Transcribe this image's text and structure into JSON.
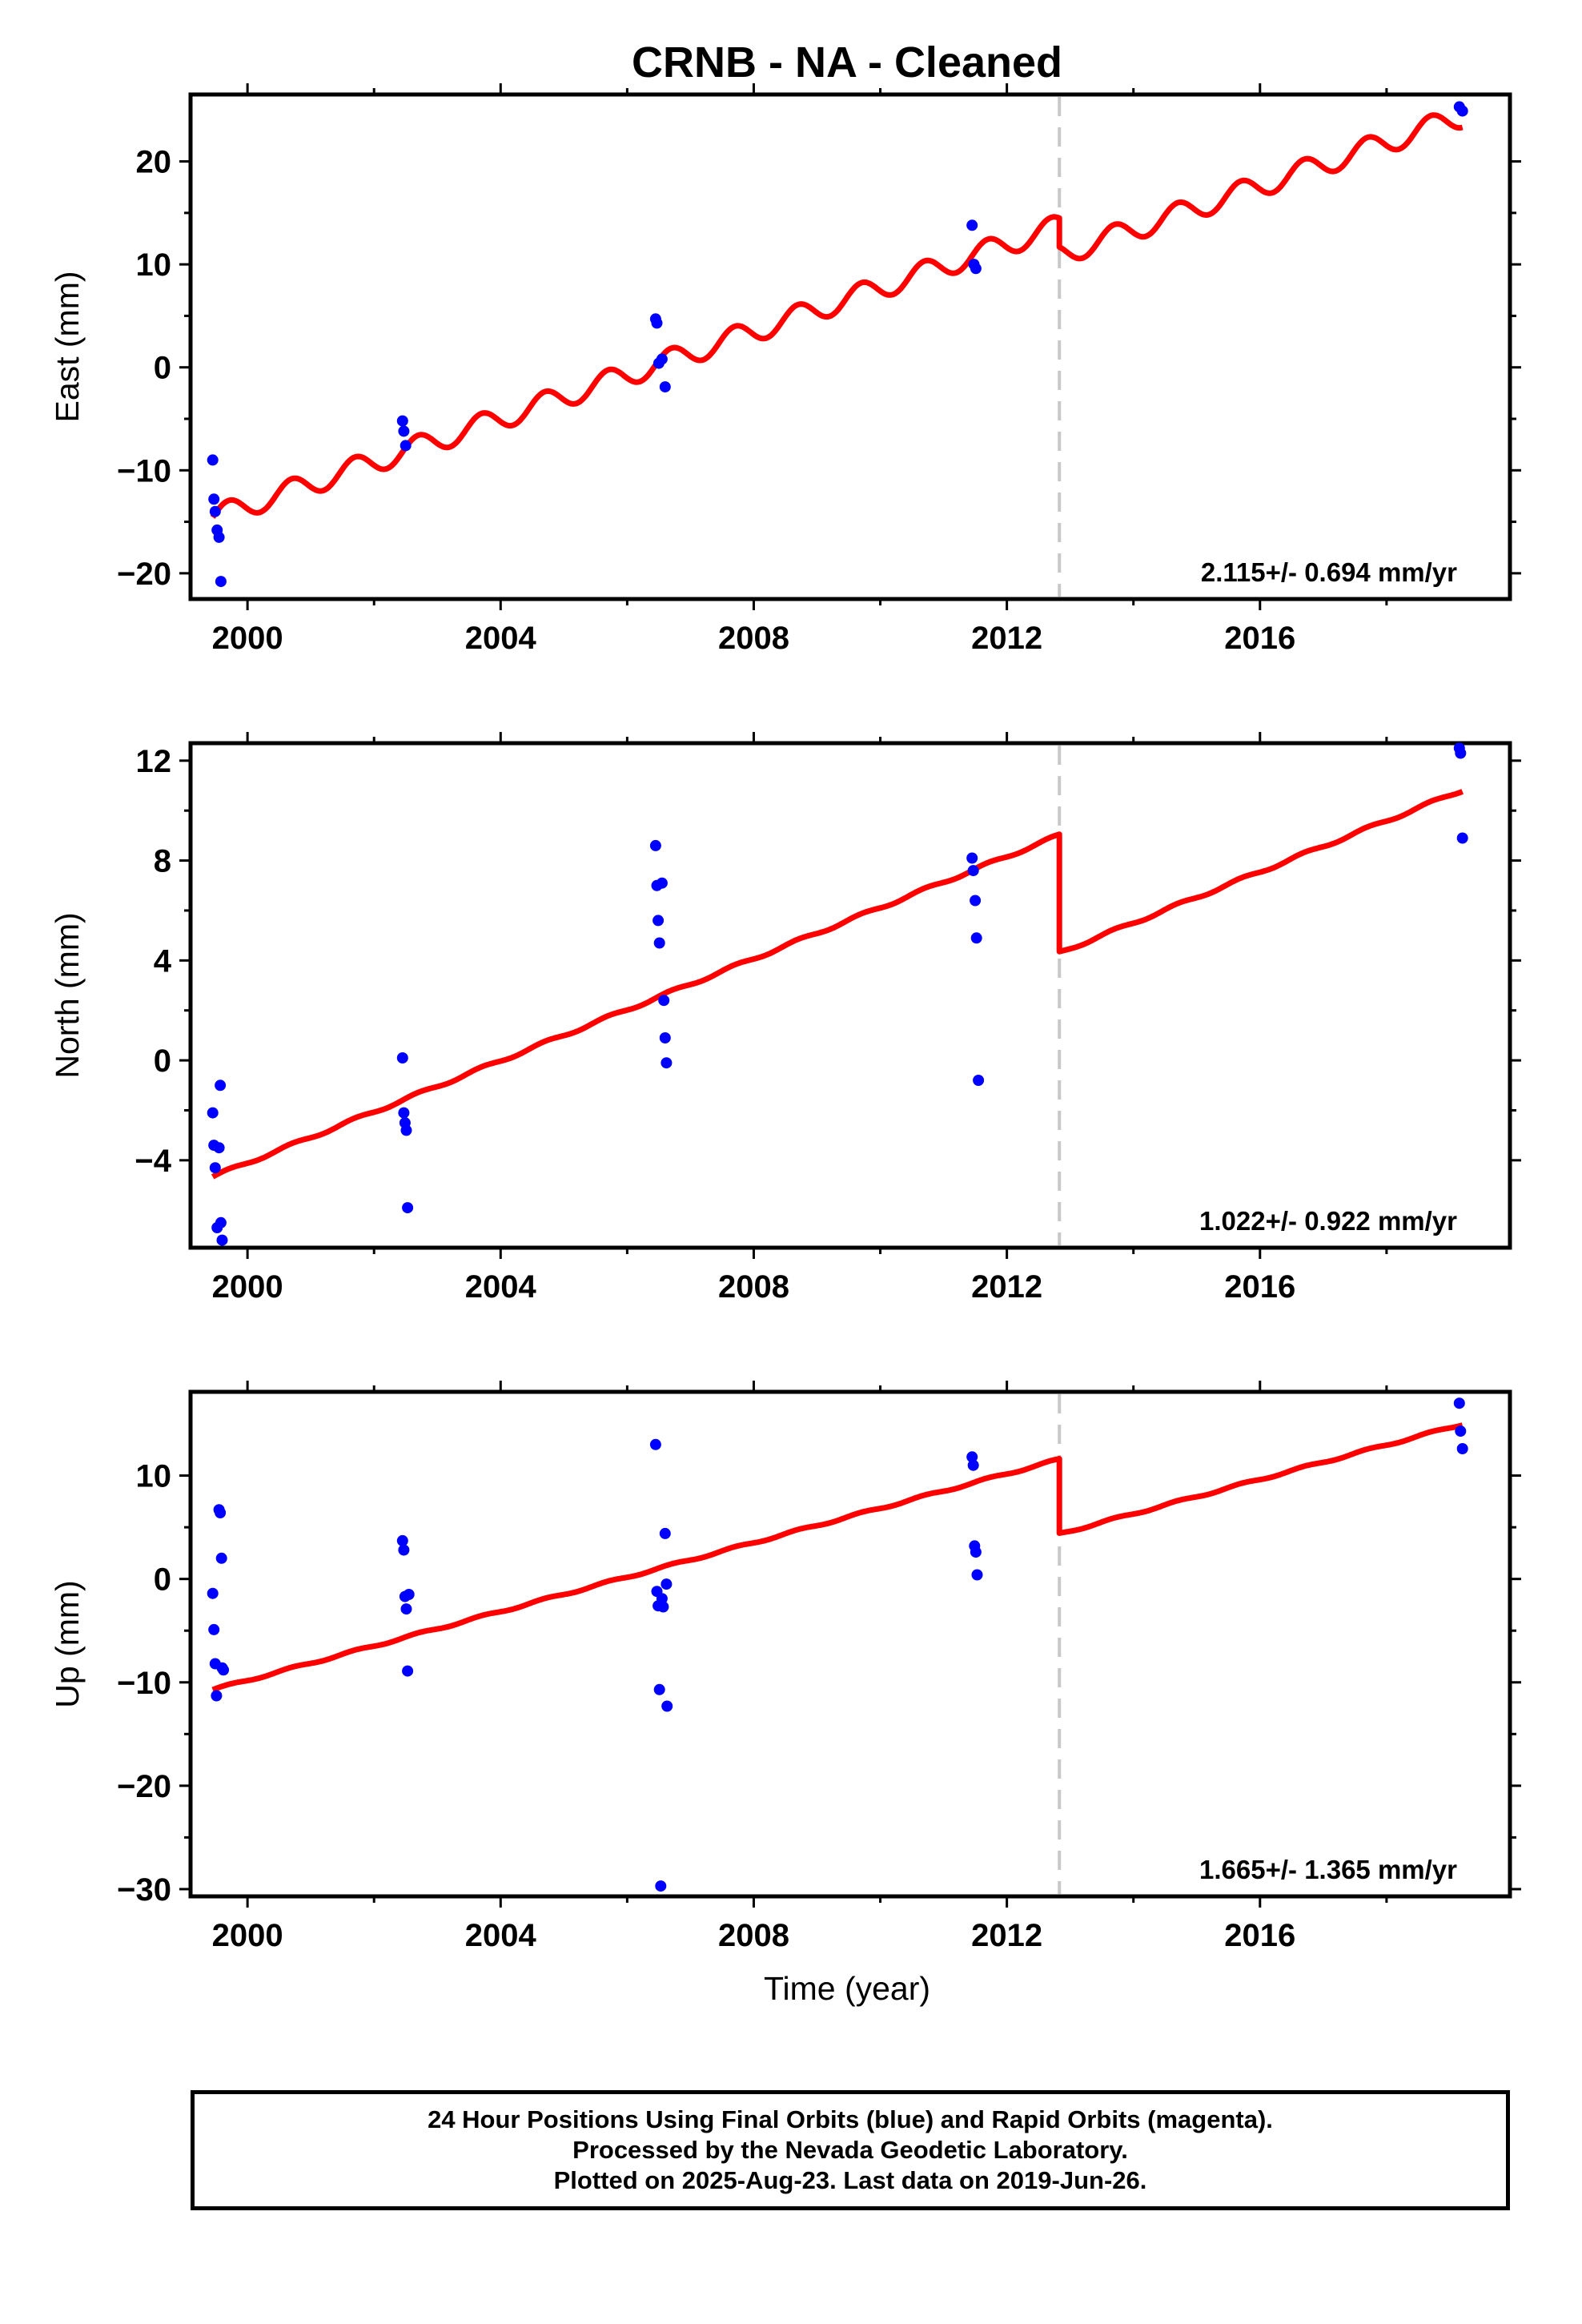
{
  "title": "CRNB  - NA - Cleaned",
  "xlabel": "Time (year)",
  "footer": {
    "line1": "24 Hour Positions Using Final Orbits (blue) and Rapid Orbits (magenta).",
    "line2": "Processed by the Nevada Geodetic Laboratory.",
    "line3": "Plotted on 2025-Aug-23. Last data on 2019-Jun-26."
  },
  "colors": {
    "data": "#0000ff",
    "model": "#ff0000",
    "break": "#c8c8c8",
    "frame": "#000000"
  },
  "chart_data": [
    {
      "type": "scatter",
      "panel": "east",
      "ylabel": "East (mm)",
      "xlim": [
        1999.1,
        2019.95
      ],
      "ylim": [
        -22.5,
        26.5
      ],
      "x_ticks": [
        2000,
        2004,
        2008,
        2012,
        2016
      ],
      "y_ticks": [
        -20,
        -10,
        0,
        10,
        20
      ],
      "grid": false,
      "break_epoch": 2012.83,
      "rate_text": "2.115+/- 0.694 mm/yr",
      "series": [
        {
          "role": "data",
          "color": "#0000ff",
          "x": [
            1999.45,
            1999.47,
            1999.49,
            1999.52,
            1999.55,
            1999.58,
            2002.45,
            2002.47,
            2002.5,
            2006.45,
            2006.47,
            2006.5,
            2006.55,
            2006.6,
            2011.45,
            2011.48,
            2011.51,
            2019.15,
            2019.2
          ],
          "y": [
            -9,
            -12.8,
            -14,
            -15.8,
            -16.5,
            -20.8,
            -5.2,
            -6.2,
            -7.6,
            4.7,
            4.3,
            0.4,
            0.8,
            -1.9,
            13.8,
            10,
            9.6,
            25.3,
            24.9
          ]
        },
        {
          "role": "model",
          "color": "#ff0000",
          "rate": 2.115,
          "amplitude": 1.1,
          "segments": [
            {
              "x_start": 1999.45,
              "x_end": 2012.83,
              "y_at_2000": -13.4,
              "phase": 0.45
            },
            {
              "x_start": 2012.83,
              "x_end": 2019.2,
              "y_at_2000": -16.2,
              "phase": 0.45
            }
          ]
        }
      ]
    },
    {
      "type": "scatter",
      "panel": "north",
      "ylabel": "North (mm)",
      "xlim": [
        1999.1,
        2019.95
      ],
      "ylim": [
        -7.5,
        12.7
      ],
      "x_ticks": [
        2000,
        2004,
        2008,
        2012,
        2016
      ],
      "y_ticks": [
        -4,
        0,
        4,
        8,
        12
      ],
      "grid": false,
      "break_epoch": 2012.83,
      "rate_text": "1.022+/- 0.922 mm/yr",
      "series": [
        {
          "role": "data",
          "color": "#0000ff",
          "x": [
            1999.45,
            1999.47,
            1999.49,
            1999.52,
            1999.55,
            1999.57,
            1999.58,
            1999.6,
            2002.45,
            2002.47,
            2002.49,
            2002.51,
            2002.53,
            2006.45,
            2006.47,
            2006.49,
            2006.51,
            2006.55,
            2006.58,
            2006.6,
            2006.62,
            2011.45,
            2011.47,
            2011.5,
            2011.52,
            2011.55,
            2019.15,
            2019.17,
            2019.2
          ],
          "y": [
            -2.1,
            -3.4,
            -4.3,
            -6.7,
            -3.5,
            -1,
            -6.5,
            -7.2,
            0.1,
            -2.1,
            -2.5,
            -2.8,
            -5.9,
            8.6,
            7,
            5.6,
            4.7,
            7.1,
            2.4,
            0.9,
            -0.1,
            8.1,
            7.6,
            6.4,
            4.9,
            -0.8,
            12.5,
            12.3,
            8.9
          ]
        },
        {
          "role": "model",
          "color": "#ff0000",
          "rate": 1.022,
          "amplitude": 0.06,
          "segments": [
            {
              "x_start": 1999.45,
              "x_end": 2012.83,
              "y_at_2000": -4.1,
              "phase": 0.45
            },
            {
              "x_start": 2012.83,
              "x_end": 2019.2,
              "y_at_2000": -8.8,
              "phase": 0.45
            }
          ]
        }
      ]
    },
    {
      "type": "scatter",
      "panel": "up",
      "ylabel": "Up (mm)",
      "xlim": [
        1999.1,
        2019.95
      ],
      "ylim": [
        -30.7,
        18.1
      ],
      "x_ticks": [
        2000,
        2004,
        2008,
        2012,
        2016
      ],
      "y_ticks": [
        -30,
        -20,
        -10,
        0,
        10
      ],
      "grid": false,
      "break_epoch": 2012.83,
      "rate_text": "1.665+/- 1.365 mm/yr",
      "series": [
        {
          "role": "data",
          "color": "#0000ff",
          "x": [
            1999.45,
            1999.47,
            1999.49,
            1999.51,
            1999.55,
            1999.57,
            1999.59,
            1999.6,
            1999.62,
            2002.45,
            2002.47,
            2002.49,
            2002.51,
            2002.53,
            2002.55,
            2006.45,
            2006.47,
            2006.49,
            2006.51,
            2006.53,
            2006.55,
            2006.57,
            2006.6,
            2006.62,
            2006.63,
            2011.45,
            2011.47,
            2011.49,
            2011.51,
            2011.53,
            2019.15,
            2019.17,
            2019.2
          ],
          "y": [
            -1.4,
            -4.9,
            -8.2,
            -11.3,
            6.7,
            6.4,
            2,
            -8.6,
            -8.8,
            3.7,
            2.8,
            -1.7,
            -2.9,
            -8.9,
            -1.5,
            13,
            -1.2,
            -2.6,
            -10.7,
            -29.7,
            -1.9,
            -2.7,
            4.4,
            -0.5,
            -12.3,
            11.8,
            11,
            3.2,
            2.6,
            0.4,
            17,
            14.3,
            12.6
          ]
        },
        {
          "role": "model",
          "color": "#ff0000",
          "rate": 1.665,
          "amplitude": 0.1,
          "segments": [
            {
              "x_start": 1999.45,
              "x_end": 2012.83,
              "y_at_2000": -9.8,
              "phase": 0.45
            },
            {
              "x_start": 2012.83,
              "x_end": 2019.2,
              "y_at_2000": -17.0,
              "phase": 0.45
            }
          ]
        }
      ]
    }
  ]
}
